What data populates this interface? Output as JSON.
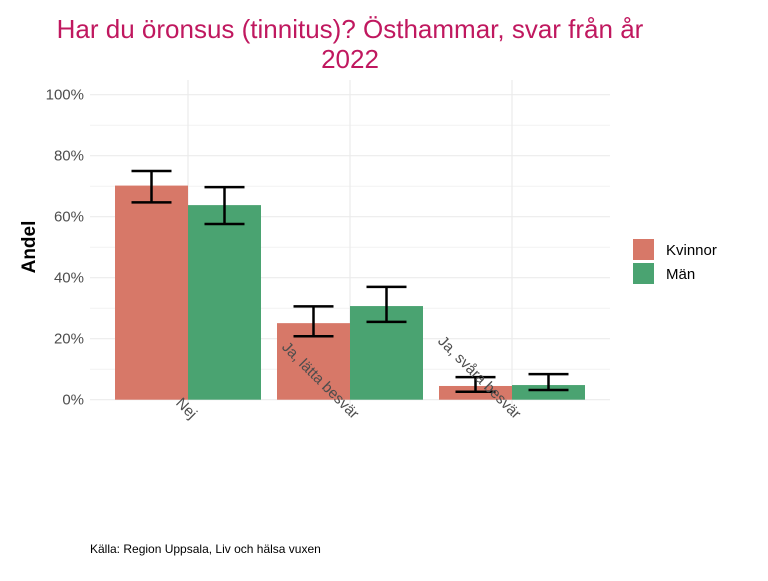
{
  "chart_data": {
    "type": "bar",
    "title_lines": [
      "Har du öronsus (tinnitus)? Östhammar, svar från år",
      "2022"
    ],
    "ylabel": "Andel",
    "xlabel": "",
    "ylim": [
      0,
      100
    ],
    "yticks": [
      "0%",
      "20%",
      "40%",
      "60%",
      "80%",
      "100%"
    ],
    "categories": [
      "Nej",
      "Ja, lätta besvär",
      "Ja, svåra besvär"
    ],
    "series": [
      {
        "name": "Kvinnor",
        "color": "#d77868",
        "values": [
          70.2,
          25.1,
          4.5
        ],
        "lower": [
          64.7,
          20.8,
          2.6
        ],
        "upper": [
          75.0,
          30.6,
          7.4
        ]
      },
      {
        "name": "Män",
        "color": "#4aa371",
        "values": [
          63.8,
          30.7,
          4.8
        ],
        "lower": [
          57.6,
          25.5,
          3.2
        ],
        "upper": [
          69.7,
          37.0,
          8.4
        ]
      }
    ],
    "grid": true,
    "legend_position": "right",
    "caption": "Källa: Region Uppsala, Liv och hälsa vuxen",
    "title_color": "#c0185f"
  }
}
